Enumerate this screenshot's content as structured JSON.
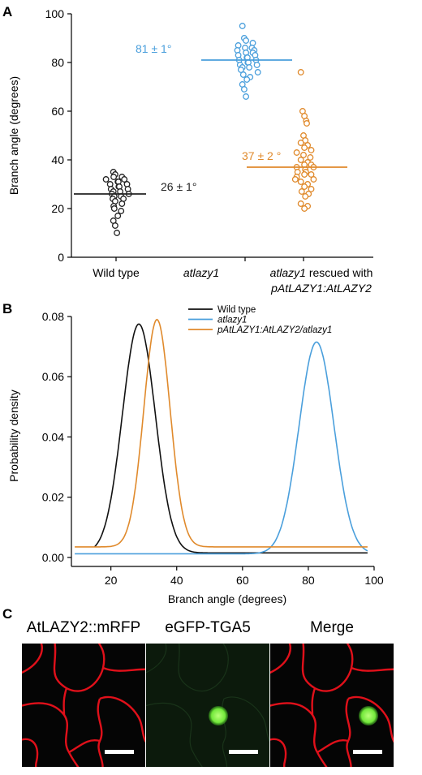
{
  "panel_a": {
    "letter": "A",
    "chart_data": {
      "type": "scatter",
      "ylabel": "Branch angle (degrees)",
      "ylim": [
        0,
        100
      ],
      "yticks": [
        0,
        20,
        40,
        60,
        80,
        100
      ],
      "categories": [
        "Wild type",
        "atlazy1",
        "atlazy1 rescued with pAtLAZY1:AtLAZY2"
      ],
      "category_label_lines": [
        [
          "Wild type"
        ],
        [
          "atlazy1"
        ],
        [
          "atlazy1 rescued with",
          "pAtLAZY1:AtLAZY2"
        ]
      ],
      "series": [
        {
          "category": "Wild type",
          "color": "#222222",
          "mean": 26,
          "mean_label": "26 ± 1°",
          "values": [
            35,
            34,
            33,
            33,
            32,
            32,
            31,
            31,
            30,
            30,
            29,
            29,
            28,
            28,
            27,
            27,
            26,
            26,
            25,
            25,
            24,
            24,
            23,
            22,
            21,
            20,
            19,
            17,
            15,
            13,
            10
          ]
        },
        {
          "category": "atlazy1",
          "color": "#4a9fdc",
          "mean": 81,
          "mean_label": "81 ± 1°",
          "values": [
            95,
            90,
            89,
            88,
            87,
            86,
            86,
            85,
            85,
            84,
            84,
            83,
            83,
            82,
            82,
            81,
            81,
            80,
            80,
            79,
            79,
            78,
            78,
            77,
            76,
            75,
            74,
            73,
            71,
            69,
            66
          ]
        },
        {
          "category": "atlazy1 rescued with pAtLAZY1:AtLAZY2",
          "color": "#e08a2c",
          "mean": 37,
          "mean_label": "37 ± 2 °",
          "values": [
            76,
            60,
            58,
            56,
            55,
            50,
            48,
            47,
            46,
            45,
            44,
            43,
            42,
            41,
            40,
            39,
            38,
            38,
            37,
            37,
            36,
            35,
            35,
            34,
            34,
            33,
            32,
            32,
            31,
            30,
            29,
            28,
            27,
            26,
            25,
            22,
            21,
            20
          ]
        }
      ]
    }
  },
  "panel_b": {
    "letter": "B",
    "chart_data": {
      "type": "line",
      "xlabel": "Branch angle (degrees)",
      "ylabel": "Probability density",
      "xlim": [
        8,
        100
      ],
      "ylim": [
        -0.003,
        0.08
      ],
      "xticks": [
        20,
        40,
        60,
        80,
        100
      ],
      "yticks": [
        0.0,
        0.02,
        0.04,
        0.06,
        0.08
      ],
      "ytick_labels": [
        "0.00",
        "0.02",
        "0.04",
        "0.06",
        "0.08"
      ],
      "legend_position": "top-right",
      "series": [
        {
          "name": "Wild type",
          "label_italic": false,
          "color": "#111111",
          "mean": 28.5,
          "sd": 5.0,
          "peak": 0.0775,
          "baseline": 0.0015,
          "x_range": [
            15,
            98
          ]
        },
        {
          "name": "atlazy1",
          "label_italic": true,
          "color": "#4a9fdc",
          "mean": 82.5,
          "sd": 5.3,
          "peak": 0.0715,
          "baseline": 0.0012,
          "x_range": [
            9,
            98
          ]
        },
        {
          "name": "pAtLAZY1:AtLAZY2/atlazy1",
          "label_italic": true,
          "color": "#e08a2c",
          "mean": 34.0,
          "sd": 4.0,
          "peak": 0.079,
          "baseline": 0.0035,
          "x_range": [
            9,
            98
          ]
        }
      ]
    }
  },
  "panel_c": {
    "letter": "C",
    "images": [
      {
        "title": "AtLAZY2::mRFP",
        "kind": "membrane-red"
      },
      {
        "title": "eGFP-TGA5",
        "kind": "nucleus-green"
      },
      {
        "title": "Merge",
        "kind": "merge"
      }
    ],
    "colors": {
      "rfp": "#e0101a",
      "gfp": "#7ef04a",
      "background": "#050505"
    }
  }
}
